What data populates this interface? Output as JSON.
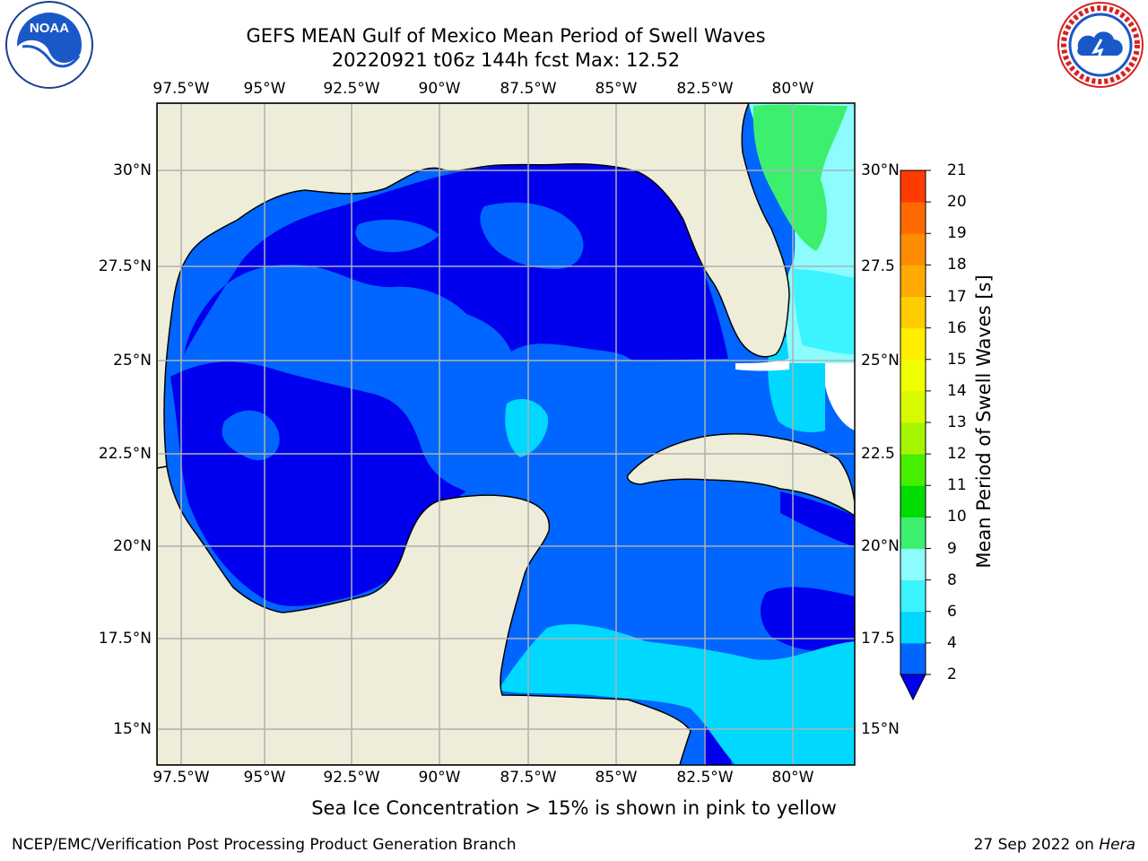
{
  "title": {
    "line1": "GEFS MEAN Gulf of Mexico Mean Period of Swell Waves",
    "line2": "20220921 t06z 144h fcst   Max: 12.52"
  },
  "map": {
    "lon_labels": [
      "97.5°W",
      "95°W",
      "92.5°W",
      "90°W",
      "87.5°W",
      "85°W",
      "82.5°W",
      "80°W"
    ],
    "lat_labels": [
      "30°N",
      "27.5°N",
      "25°N",
      "22.5°N",
      "20°N",
      "17.5°N",
      "15°N"
    ],
    "lat_labels_right": [
      "30°N",
      "27.5",
      "25°N",
      "22.5",
      "20°N",
      "17.5",
      "15°N"
    ],
    "land_color": "#eeedda",
    "grid": true
  },
  "colorbar": {
    "title": "Mean Period of Swell Waves [s]",
    "levels": [
      "2",
      "4",
      "6",
      "8",
      "9",
      "10",
      "11",
      "12",
      "13",
      "14",
      "15",
      "16",
      "17",
      "18",
      "19",
      "20",
      "21"
    ],
    "colors": [
      "#0066ff",
      "#00d8ff",
      "#3cf4ff",
      "#8cfcff",
      "#3cf06e",
      "#00dc00",
      "#46ee00",
      "#a6f500",
      "#d8fa00",
      "#f0ff00",
      "#ffee00",
      "#ffcc00",
      "#ffaa00",
      "#ff8c00",
      "#ff6a00",
      "#ff3c00"
    ],
    "under_color": "#0000ee"
  },
  "caption": "Sea Ice Concentration > 15% is shown in pink to yellow",
  "footer": {
    "left": "NCEP/EMC/Verification Post Processing Product Generation Branch",
    "right_prefix": "27 Sep 2022 on ",
    "right_host": "Hera"
  },
  "logos": {
    "left": "NOAA",
    "left_ring_text": "NATIONAL OCEANIC AND ATMOSPHERIC ADMINISTRATION · U.S. DEPARTMENT OF COMMERCE",
    "right_ring_text": "NATIONAL WEATHER SERVICE"
  }
}
